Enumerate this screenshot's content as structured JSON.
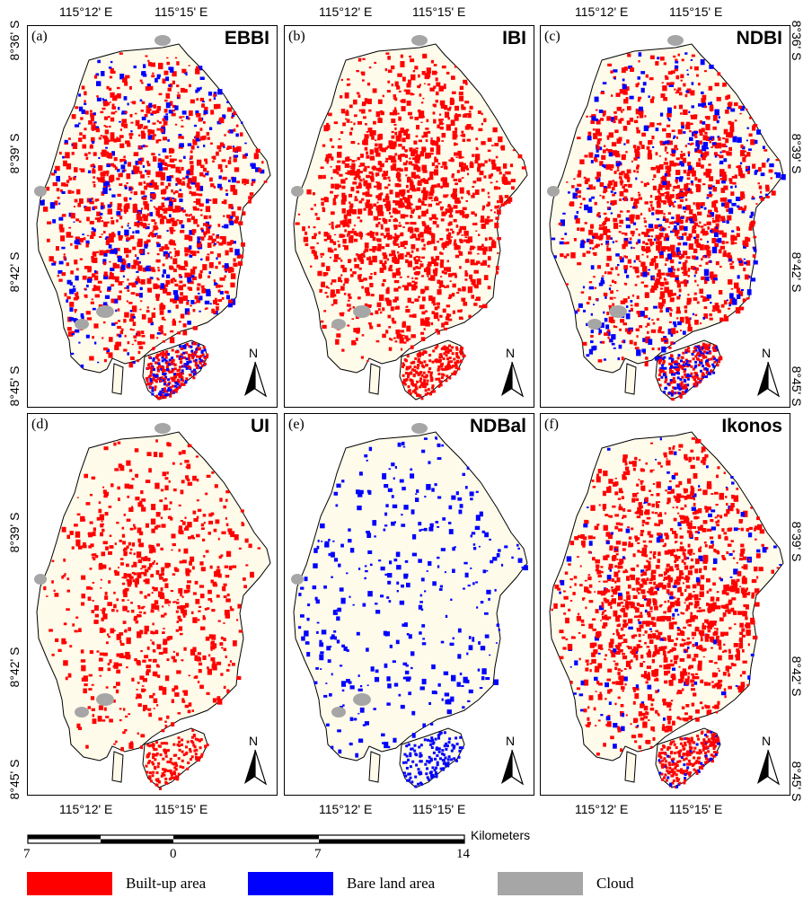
{
  "colors": {
    "built_up": "#ff0000",
    "bare_land": "#0000ff",
    "cloud": "#a6a6a6",
    "land_background": "#fffbea",
    "outline": "#000000"
  },
  "coords": {
    "lon_left": "115°12' E",
    "lon_right": "115°15' E",
    "lat_a": "8°36' S",
    "lat_b": "8°39' S",
    "lat_c": "8°42' S",
    "lat_d": "8°45' S"
  },
  "panels": [
    {
      "letter": "(a)",
      "title": "EBBI",
      "built_density": 0.55,
      "bare_density": 0.1,
      "cloud": true
    },
    {
      "letter": "(b)",
      "title": "IBI",
      "built_density": 0.72,
      "bare_density": 0.0,
      "cloud": true
    },
    {
      "letter": "(c)",
      "title": "NDBI",
      "built_density": 0.58,
      "bare_density": 0.09,
      "cloud": true
    },
    {
      "letter": "(d)",
      "title": "UI",
      "built_density": 0.4,
      "bare_density": 0.0,
      "cloud": true
    },
    {
      "letter": "(e)",
      "title": "NDBal",
      "built_density": 0.0,
      "bare_density": 0.1,
      "cloud": true
    },
    {
      "letter": "(f)",
      "title": "Ikonos",
      "built_density": 0.68,
      "bare_density": 0.03,
      "cloud": false
    }
  ],
  "north_label": "N",
  "scale": {
    "unit": "Kilometers",
    "ticks": [
      "7",
      "0",
      "7",
      "14"
    ]
  },
  "legend": [
    {
      "label": "Built-up area",
      "color": "#ff0000"
    },
    {
      "label": "Bare land area",
      "color": "#0000ff"
    },
    {
      "label": "Cloud",
      "color": "#a6a6a6"
    }
  ]
}
